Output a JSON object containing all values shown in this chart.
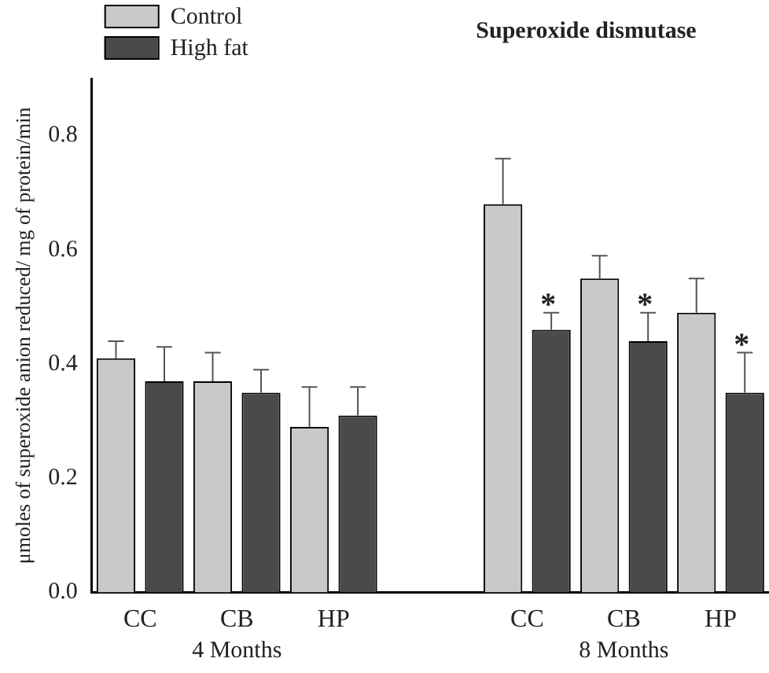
{
  "chart_data": {
    "type": "bar",
    "title": "Superoxide dismutase",
    "ylabel": "μmoles of superoxide anion reduced/ mg of protein/min",
    "categories": [
      "CC",
      "CB",
      "HP",
      null,
      "CC",
      "CB",
      "HP"
    ],
    "series": [
      {
        "name": "Control",
        "color": "#c8c9cb",
        "values": [
          0.41,
          0.37,
          0.29,
          null,
          0.68,
          0.55,
          0.49
        ],
        "errors": [
          0.03,
          0.05,
          0.07,
          null,
          0.08,
          0.04,
          0.06
        ]
      },
      {
        "name": "High fat",
        "color": "#4a4a4a",
        "values": [
          0.37,
          0.35,
          0.31,
          null,
          0.46,
          0.44,
          0.35
        ],
        "errors": [
          0.06,
          0.04,
          0.05,
          null,
          0.03,
          0.05,
          0.07
        ],
        "value_labels": [
          null,
          null,
          null,
          null,
          "*",
          "*",
          "*"
        ]
      }
    ],
    "annotations": [
      "4 Months",
      "8 Months"
    ],
    "ylim": [
      0,
      0.9
    ],
    "yticks": [
      {
        "value": 0,
        "label": "0.0"
      },
      {
        "value": 0.2,
        "label": "0.2"
      },
      {
        "value": 0.4,
        "label": "0.4"
      },
      {
        "value": 0.6,
        "label": "0.6"
      },
      {
        "value": 0.8,
        "label": "0.8"
      }
    ],
    "grid": false,
    "legend": "top left"
  }
}
